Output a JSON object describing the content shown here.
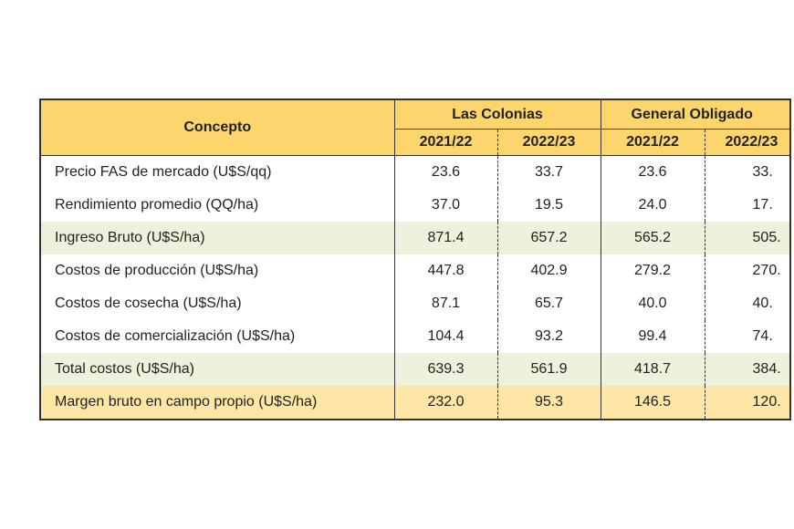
{
  "header": {
    "concept": "Concepto",
    "groups": [
      "Las Colonias",
      "General Obligado"
    ],
    "years": [
      "2021/22",
      "2022/23",
      "2021/22",
      "2022/23"
    ]
  },
  "rows": [
    {
      "label": "Precio FAS de mercado (U$S/qq)",
      "values": [
        "23.6",
        "33.7",
        "23.6",
        "33."
      ],
      "style": "plain"
    },
    {
      "label": "Rendimiento promedio (QQ/ha)",
      "values": [
        "37.0",
        "19.5",
        "24.0",
        "17."
      ],
      "style": "plain"
    },
    {
      "label": "Ingreso Bruto (U$S/ha)",
      "values": [
        "871.4",
        "657.2",
        "565.2",
        "505."
      ],
      "style": "green"
    },
    {
      "label": "Costos de producción (U$S/ha)",
      "values": [
        "447.8",
        "402.9",
        "279.2",
        "270."
      ],
      "style": "plain"
    },
    {
      "label": "Costos de cosecha (U$S/ha)",
      "values": [
        "87.1",
        "65.7",
        "40.0",
        "40."
      ],
      "style": "plain"
    },
    {
      "label": "Costos de comercialización (U$S/ha)",
      "values": [
        "104.4",
        "93.2",
        "99.4",
        "74."
      ],
      "style": "plain"
    },
    {
      "label": "Total costos (U$S/ha)",
      "values": [
        "639.3",
        "561.9",
        "418.7",
        "384."
      ],
      "style": "green"
    },
    {
      "label": "Margen bruto en campo propio (U$S/ha)",
      "values": [
        "232.0",
        "95.3",
        "146.5",
        "120."
      ],
      "style": "yellow"
    }
  ]
}
